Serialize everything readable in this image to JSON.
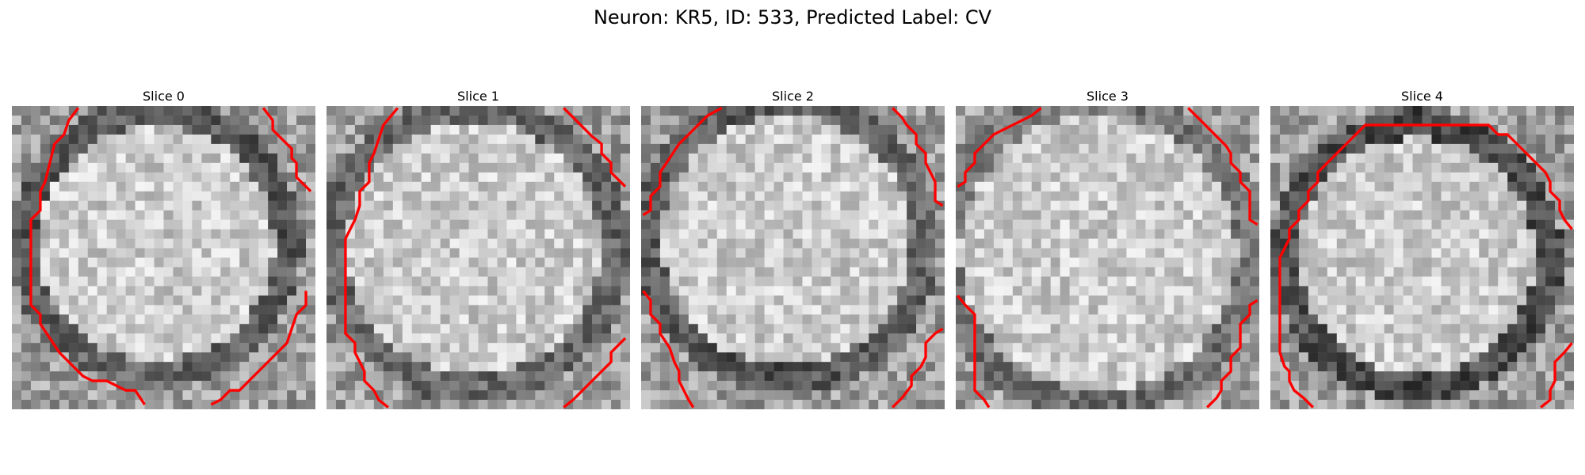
{
  "figure": {
    "suptitle": "Neuron: KR5, ID: 533, Predicted Label: CV",
    "contour_color": "#ff0000",
    "colormap": "gray",
    "slices": [
      {
        "title": "Slice 0",
        "seed": 11,
        "center": [
          15.2,
          14.5
        ],
        "radius": 13.6,
        "darkness": [
          0.55,
          0.65,
          0.45,
          0.6
        ]
      },
      {
        "title": "Slice 1",
        "seed": 23,
        "center": [
          15.5,
          15.0
        ],
        "radius": 14.6,
        "darkness": [
          0.45,
          0.5,
          0.45,
          0.5
        ]
      },
      {
        "title": "Slice 2",
        "seed": 37,
        "center": [
          15.3,
          14.2
        ],
        "radius": 14.4,
        "darkness": [
          0.6,
          0.4,
          0.7,
          0.55
        ]
      },
      {
        "title": "Slice 3",
        "seed": 41,
        "center": [
          15.0,
          15.5
        ],
        "radius": 15.8,
        "darkness": [
          0.35,
          0.35,
          0.45,
          0.35
        ]
      },
      {
        "title": "Slice 4",
        "seed": 59,
        "center": [
          15.4,
          15.8
        ],
        "radius": 13.6,
        "darkness": [
          0.75,
          0.7,
          0.75,
          0.6
        ]
      }
    ]
  }
}
